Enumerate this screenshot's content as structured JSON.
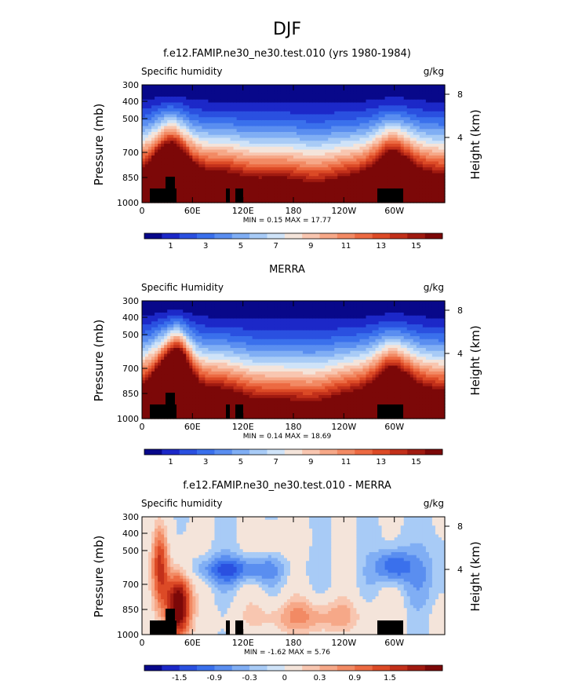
{
  "figure_title": "DJF",
  "chart_data": [
    {
      "type": "heatmap",
      "title": "f.e12.FAMIP.ne30_ne30.test.010 (yrs 1980-1984)",
      "variable": "Specific humidity",
      "units": "g/kg",
      "ylabel": "Pressure (mb)",
      "y2label": "Height (km)",
      "xticks": [
        "0",
        "60E",
        "120E",
        "180",
        "120W",
        "60W"
      ],
      "yticks": [
        "300",
        "400",
        "500",
        "700",
        "850",
        "1000"
      ],
      "y2ticks": [
        "8",
        "4"
      ],
      "ylim": [
        1000,
        300
      ],
      "xlim": [
        0,
        360
      ],
      "stats": "MIN =    0.15   MAX =   17.77",
      "colorbar": {
        "labels": [
          "1",
          "3",
          "5",
          "7",
          "9",
          "11",
          "13",
          "15"
        ],
        "colors": [
          "#08088a",
          "#1c28c8",
          "#2a50e0",
          "#3a70ec",
          "#5a8ef0",
          "#80aef4",
          "#a8cbf6",
          "#cfe3f8",
          "#f4e4da",
          "#f8c6b0",
          "#f6a888",
          "#f28a64",
          "#ec6a42",
          "#dc4a26",
          "#c2301a",
          "#a01a10",
          "#7c0808"
        ]
      },
      "profile": "model"
    },
    {
      "type": "heatmap",
      "title": "MERRA",
      "variable": "Specific Humidity",
      "units": "g/kg",
      "ylabel": "Pressure (mb)",
      "y2label": "Height (km)",
      "xticks": [
        "0",
        "60E",
        "120E",
        "180",
        "120W",
        "60W"
      ],
      "yticks": [
        "300",
        "400",
        "500",
        "700",
        "850",
        "1000"
      ],
      "y2ticks": [
        "8",
        "4"
      ],
      "ylim": [
        1000,
        300
      ],
      "xlim": [
        0,
        360
      ],
      "stats": "MIN =    0.14   MAX =   18.69",
      "colorbar": {
        "labels": [
          "1",
          "3",
          "5",
          "7",
          "9",
          "11",
          "13",
          "15"
        ],
        "colors": [
          "#08088a",
          "#1c28c8",
          "#2a50e0",
          "#3a70ec",
          "#5a8ef0",
          "#80aef4",
          "#a8cbf6",
          "#cfe3f8",
          "#f4e4da",
          "#f8c6b0",
          "#f6a888",
          "#f28a64",
          "#ec6a42",
          "#dc4a26",
          "#c2301a",
          "#a01a10",
          "#7c0808"
        ]
      },
      "profile": "obs"
    },
    {
      "type": "heatmap",
      "title": "f.e12.FAMIP.ne30_ne30.test.010 - MERRA",
      "variable": "Specific humidity",
      "units": "g/kg",
      "ylabel": "Pressure (mb)",
      "y2label": "Height (km)",
      "xticks": [
        "0",
        "60E",
        "120E",
        "180",
        "120W",
        "60W"
      ],
      "yticks": [
        "300",
        "400",
        "500",
        "700",
        "850",
        "1000"
      ],
      "y2ticks": [
        "8",
        "4"
      ],
      "ylim": [
        1000,
        300
      ],
      "xlim": [
        0,
        360
      ],
      "stats": "MIN =   -1.62   MAX =    5.76",
      "colorbar": {
        "labels": [
          "-1.5",
          "-0.9",
          "-0.3",
          "0",
          "0.3",
          "0.9",
          "1.5"
        ],
        "colors": [
          "#08088a",
          "#1c28c8",
          "#2a50e0",
          "#3a70ec",
          "#5a8ef0",
          "#80aef4",
          "#a8cbf6",
          "#cfe3f8",
          "#f4e4da",
          "#f8c6b0",
          "#f6a888",
          "#f28a64",
          "#ec6a42",
          "#dc4a26",
          "#c2301a",
          "#a01a10",
          "#7c0808"
        ]
      },
      "profile": "diff"
    }
  ]
}
